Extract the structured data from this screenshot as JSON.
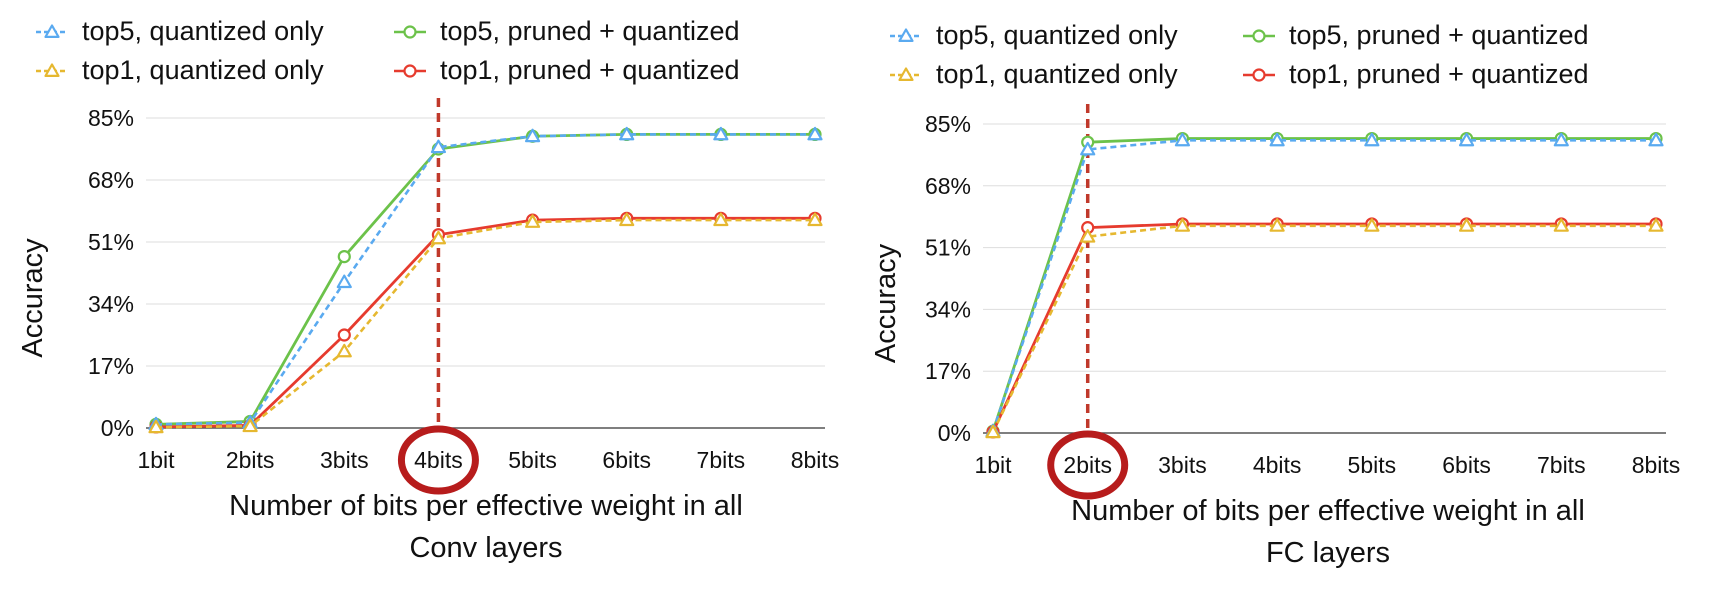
{
  "chart_data": [
    {
      "type": "line",
      "categories": [
        "1bit",
        "2bits",
        "3bits",
        "4bits",
        "5bits",
        "6bits",
        "7bits",
        "8bits"
      ],
      "ylabel": "Accuracy",
      "xlabel_lines": [
        "Number of bits per effective weight in all",
        "Conv layers"
      ],
      "yticks": [
        "0%",
        "17%",
        "34%",
        "51%",
        "68%",
        "85%"
      ],
      "ylim": [
        0,
        85
      ],
      "grid": "horizontal",
      "legend_position": "top",
      "highlight": {
        "category": "4bits",
        "dashed_line_color": "#c0392b",
        "circle_color": "#b71c1c"
      },
      "series": [
        {
          "name": "top5, quantized only",
          "color": "#5aaaf0",
          "marker": "triangle",
          "dashed": true,
          "values": [
            1,
            1.5,
            40,
            77,
            80,
            80.5,
            80.5,
            80.5
          ]
        },
        {
          "name": "top1, quantized only",
          "color": "#e6b830",
          "marker": "triangle",
          "dashed": true,
          "values": [
            0.2,
            0.5,
            21,
            52,
            56.5,
            57,
            57,
            57
          ]
        },
        {
          "name": "top5, pruned + quantized",
          "color": "#6cc24a",
          "marker": "circle",
          "dashed": false,
          "values": [
            1,
            1.8,
            47,
            76.5,
            80,
            80.5,
            80.5,
            80.5
          ]
        },
        {
          "name": "top1, pruned + quantized",
          "color": "#e63b2e",
          "marker": "circle",
          "dashed": false,
          "values": [
            0.3,
            0.7,
            25.5,
            53,
            57,
            57.5,
            57.5,
            57.5
          ]
        }
      ]
    },
    {
      "type": "line",
      "categories": [
        "1bit",
        "2bits",
        "3bits",
        "4bits",
        "5bits",
        "6bits",
        "7bits",
        "8bits"
      ],
      "ylabel": "Accuracy",
      "xlabel_lines": [
        "Number of bits per effective weight in all",
        "FC layers"
      ],
      "yticks": [
        "0%",
        "17%",
        "34%",
        "51%",
        "68%",
        "85%"
      ],
      "ylim": [
        0,
        85
      ],
      "grid": "horizontal",
      "legend_position": "top",
      "highlight": {
        "category": "2bits",
        "dashed_line_color": "#c0392b",
        "circle_color": "#b71c1c"
      },
      "series": [
        {
          "name": "top5, quantized only",
          "color": "#5aaaf0",
          "marker": "triangle",
          "dashed": true,
          "values": [
            0.5,
            78,
            80.5,
            80.5,
            80.5,
            80.5,
            80.5,
            80.5
          ]
        },
        {
          "name": "top1, quantized only",
          "color": "#e6b830",
          "marker": "triangle",
          "dashed": true,
          "values": [
            0.2,
            54,
            57,
            57,
            57,
            57,
            57,
            57
          ]
        },
        {
          "name": "top5, pruned + quantized",
          "color": "#6cc24a",
          "marker": "circle",
          "dashed": false,
          "values": [
            0.5,
            80,
            81,
            81,
            81,
            81,
            81,
            81
          ]
        },
        {
          "name": "top1, pruned + quantized",
          "color": "#e63b2e",
          "marker": "circle",
          "dashed": false,
          "values": [
            0.3,
            56.5,
            57.5,
            57.5,
            57.5,
            57.5,
            57.5,
            57.5
          ]
        }
      ]
    }
  ]
}
